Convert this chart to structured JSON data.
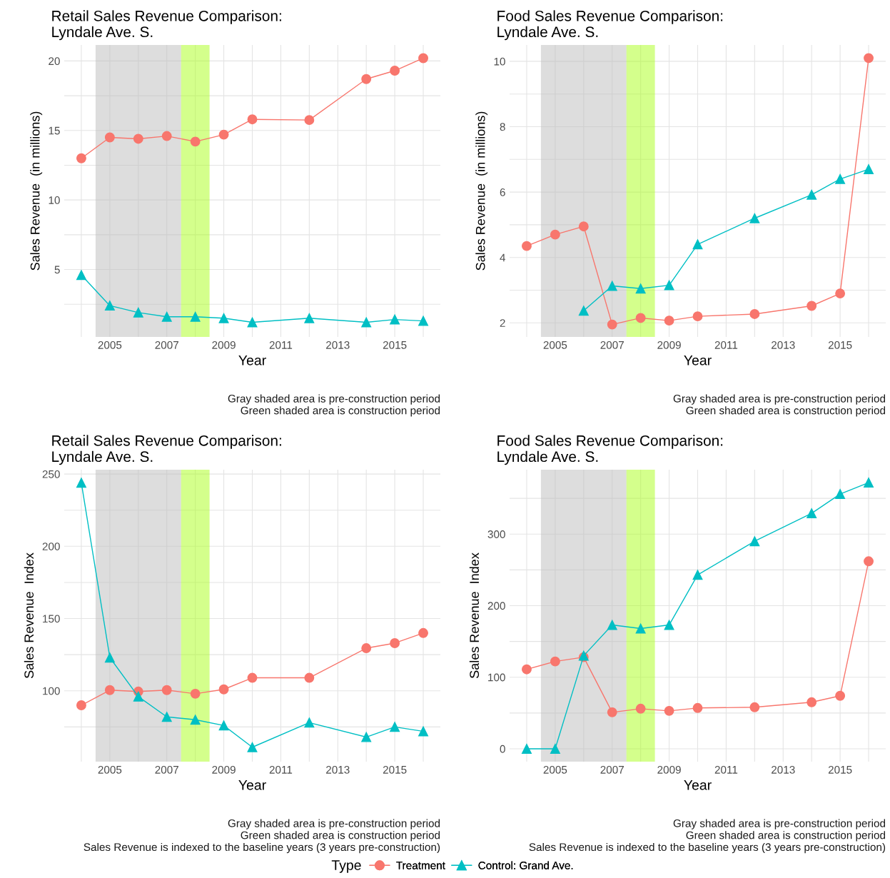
{
  "chart_data": [
    {
      "type": "line",
      "title": "Retail Sales Revenue Comparison:\nLyndale Ave. S.",
      "xlabel": "Year",
      "ylabel": "Sales Revenue  (in millions)",
      "legend_title": "Type",
      "legend": "bottom",
      "x": [
        2004,
        2005,
        2006,
        2007,
        2008,
        2009,
        2010,
        2012,
        2014,
        2015,
        2016
      ],
      "series": [
        {
          "name": "Treatment",
          "color": "#f8766d",
          "marker": "circle",
          "values": [
            13.0,
            14.5,
            14.4,
            14.6,
            14.2,
            14.7,
            15.8,
            15.75,
            18.7,
            19.3,
            20.2
          ]
        },
        {
          "name": "Control: Grand Ave.",
          "color": "#00bfc4",
          "marker": "triangle",
          "values": [
            4.6,
            2.4,
            1.9,
            1.6,
            1.6,
            1.5,
            1.2,
            1.5,
            1.2,
            1.4,
            1.3
          ]
        }
      ],
      "xlim": [
        2003.4,
        2016.6
      ],
      "xticks": [
        {
          "value": 2004,
          "label": null
        },
        2005,
        {
          "value": 2006,
          "label": null
        },
        2007,
        {
          "value": 2008,
          "label": null
        },
        2009,
        {
          "value": 2010,
          "label": null
        },
        2011,
        {
          "value": 2012,
          "label": null
        },
        2013,
        {
          "value": 2014,
          "label": null
        },
        2015,
        {
          "value": 2016,
          "label": null
        }
      ],
      "ylim": [
        0.15,
        21.15
      ],
      "yticks": [
        {
          "value": 2.5,
          "label": null
        },
        5,
        {
          "value": 7.5,
          "label": null
        },
        10,
        {
          "value": 12.5,
          "label": null
        },
        15,
        {
          "value": 17.5,
          "label": null
        },
        20
      ],
      "bands": [
        {
          "axis": "x",
          "from": 2004.5,
          "to": 2007.5,
          "label": null,
          "color": "#dddddd"
        },
        {
          "axis": "x",
          "from": 2007.5,
          "to": 2008.5,
          "label": null,
          "color": "#d4ff8c"
        }
      ],
      "grid": true,
      "annotations": [
        "Gray shaded area is pre-construction period",
        "Green shaded area is construction period"
      ]
    },
    {
      "type": "line",
      "title": "Food Sales Revenue Comparison:\nLyndale Ave. S.",
      "xlabel": "Year",
      "ylabel": "Sales Revenue  (in millions)",
      "x": [
        2004,
        2005,
        2006,
        2007,
        2008,
        2009,
        2010,
        2012,
        2014,
        2015,
        2016
      ],
      "series": [
        {
          "color": "#f8766d",
          "marker": "circle",
          "values": [
            4.35,
            4.7,
            4.95,
            1.95,
            2.15,
            2.07,
            2.2,
            2.27,
            2.52,
            2.9,
            10.1
          ]
        },
        {
          "color": "#00bfc4",
          "marker": "triangle",
          "values": [
            null,
            null,
            2.37,
            3.13,
            3.05,
            3.15,
            4.4,
            5.2,
            5.92,
            6.4,
            6.7
          ]
        }
      ],
      "xlim": [
        2003.4,
        2016.6
      ],
      "xticks": [
        {
          "value": 2004,
          "label": null
        },
        2005,
        {
          "value": 2006,
          "label": null
        },
        2007,
        {
          "value": 2008,
          "label": null
        },
        2009,
        {
          "value": 2010,
          "label": null
        },
        2011,
        {
          "value": 2012,
          "label": null
        },
        2013,
        {
          "value": 2014,
          "label": null
        },
        2015,
        {
          "value": 2016,
          "label": null
        }
      ],
      "ylim": [
        1.57,
        10.5
      ],
      "yticks": [
        2,
        {
          "value": 3,
          "label": null
        },
        4,
        {
          "value": 5,
          "label": null
        },
        6,
        {
          "value": 7,
          "label": null
        },
        8,
        {
          "value": 9,
          "label": null
        },
        10
      ],
      "bands": [
        {
          "axis": "x",
          "from": 2004.5,
          "to": 2007.5,
          "label": null,
          "color": "#dddddd"
        },
        {
          "axis": "x",
          "from": 2007.5,
          "to": 2008.5,
          "label": null,
          "color": "#d4ff8c"
        }
      ],
      "grid": true,
      "annotations": [
        "Gray shaded area is pre-construction period",
        "Green shaded area is construction period"
      ]
    },
    {
      "type": "line",
      "title": "Retail Sales Revenue Comparison:\nLyndale Ave. S.",
      "xlabel": "Year",
      "ylabel": "Sales Revenue  Index",
      "x": [
        2004,
        2005,
        2006,
        2007,
        2008,
        2009,
        2010,
        2012,
        2014,
        2015,
        2016
      ],
      "series": [
        {
          "color": "#f8766d",
          "marker": "circle",
          "values": [
            90,
            100.5,
            99.5,
            100.5,
            98,
            101,
            109,
            109,
            129.5,
            133,
            140
          ]
        },
        {
          "color": "#00bfc4",
          "marker": "triangle",
          "values": [
            244,
            123,
            96,
            82,
            80,
            76,
            61,
            78,
            68,
            75,
            72
          ]
        }
      ],
      "xlim": [
        2003.4,
        2016.6
      ],
      "xticks": [
        {
          "value": 2004,
          "label": null
        },
        2005,
        {
          "value": 2006,
          "label": null
        },
        2007,
        {
          "value": 2008,
          "label": null
        },
        2009,
        {
          "value": 2010,
          "label": null
        },
        2011,
        {
          "value": 2012,
          "label": null
        },
        2013,
        {
          "value": 2014,
          "label": null
        },
        2015,
        {
          "value": 2016,
          "label": null
        }
      ],
      "ylim": [
        51,
        253
      ],
      "yticks": [
        {
          "value": 75,
          "label": null
        },
        100,
        {
          "value": 125,
          "label": null
        },
        150,
        {
          "value": 175,
          "label": null
        },
        200,
        {
          "value": 225,
          "label": null
        },
        250
      ],
      "bands": [
        {
          "axis": "x",
          "from": 2004.5,
          "to": 2007.5,
          "label": null,
          "color": "#dddddd"
        },
        {
          "axis": "x",
          "from": 2007.5,
          "to": 2008.5,
          "label": null,
          "color": "#d4ff8c"
        }
      ],
      "grid": true,
      "annotations": [
        "Gray shaded area is pre-construction period",
        "Green shaded area is construction period",
        "Sales Revenue is indexed to the baseline years (3 years pre-construction)"
      ]
    },
    {
      "type": "line",
      "title": "Food Sales Revenue Comparison:\nLyndale Ave. S.",
      "xlabel": "Year",
      "ylabel": "Sales Revenue  Index",
      "x": [
        2004,
        2005,
        2006,
        2007,
        2008,
        2009,
        2010,
        2012,
        2014,
        2015,
        2016
      ],
      "series": [
        {
          "color": "#f8766d",
          "marker": "circle",
          "values": [
            111,
            122,
            128,
            51,
            56,
            53,
            57,
            58,
            65,
            74,
            262
          ]
        },
        {
          "color": "#00bfc4",
          "marker": "triangle",
          "values": [
            0,
            0,
            130,
            173,
            168,
            173,
            243,
            290,
            329,
            356,
            372
          ]
        }
      ],
      "xlim": [
        2003.4,
        2016.6
      ],
      "xticks": [
        {
          "value": 2004,
          "label": null
        },
        2005,
        {
          "value": 2006,
          "label": null
        },
        2007,
        {
          "value": 2008,
          "label": null
        },
        2009,
        {
          "value": 2010,
          "label": null
        },
        2011,
        {
          "value": 2012,
          "label": null
        },
        2013,
        {
          "value": 2014,
          "label": null
        },
        2015,
        {
          "value": 2016,
          "label": null
        }
      ],
      "ylim": [
        -18,
        390
      ],
      "yticks": [
        0,
        {
          "value": 50,
          "label": null
        },
        100,
        {
          "value": 150,
          "label": null
        },
        200,
        {
          "value": 250,
          "label": null
        },
        300,
        {
          "value": 350,
          "label": null
        }
      ],
      "bands": [
        {
          "axis": "x",
          "from": 2004.5,
          "to": 2007.5,
          "label": null,
          "color": "#dddddd"
        },
        {
          "axis": "x",
          "from": 2007.5,
          "to": 2008.5,
          "label": null,
          "color": "#d4ff8c"
        }
      ],
      "grid": true,
      "annotations": [
        "Gray shaded area is pre-construction period",
        "Green shaded area is construction period",
        "Sales Revenue is indexed to the baseline years (3 years pre-construction)"
      ]
    }
  ]
}
